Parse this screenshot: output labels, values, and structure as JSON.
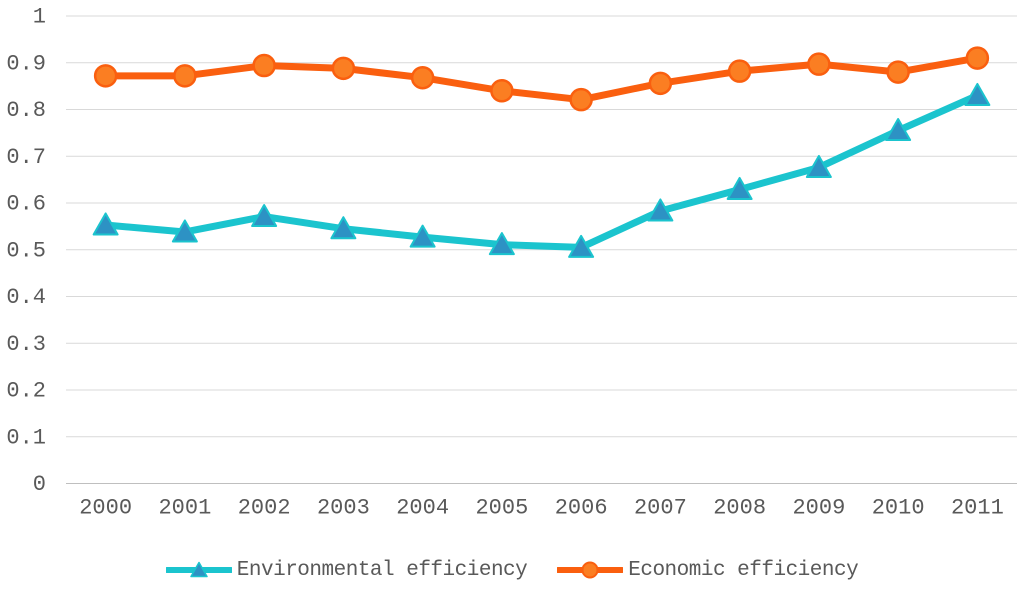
{
  "chart_data": {
    "type": "line",
    "title": "",
    "xlabel": "",
    "ylabel": "",
    "categories": [
      "2000",
      "2001",
      "2002",
      "2003",
      "2004",
      "2005",
      "2006",
      "2007",
      "2008",
      "2009",
      "2010",
      "2011"
    ],
    "series": [
      {
        "name": "Environmental efficiency",
        "marker": "triangle",
        "line_color": "#1BC4CE",
        "marker_fill": "#2D92C4",
        "values": [
          0.553,
          0.538,
          0.571,
          0.545,
          0.527,
          0.511,
          0.505,
          0.583,
          0.629,
          0.676,
          0.755,
          0.83
        ]
      },
      {
        "name": "Economic efficiency",
        "marker": "circle",
        "line_color": "#FA5F0F",
        "marker_fill": "#FB7E22",
        "values": [
          0.872,
          0.872,
          0.894,
          0.888,
          0.868,
          0.84,
          0.821,
          0.856,
          0.882,
          0.897,
          0.88,
          0.91
        ]
      }
    ],
    "ylim": [
      0,
      1
    ],
    "ytick_step": 0.1,
    "ytick_labels": [
      "0",
      "0.1",
      "0.2",
      "0.3",
      "0.4",
      "0.5",
      "0.6",
      "0.7",
      "0.8",
      "0.9",
      "1"
    ],
    "grid": true,
    "legend_position": "bottom",
    "colors": {
      "grid": "#D9D9D9",
      "axis": "#BFBFBF",
      "tick_text": "#595959"
    }
  }
}
